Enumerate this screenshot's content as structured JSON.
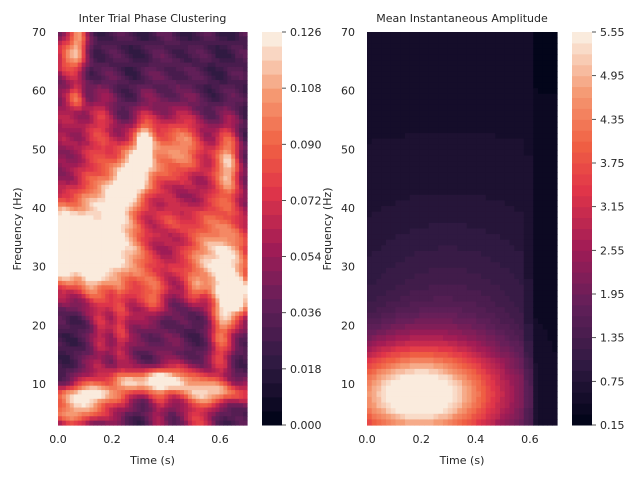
{
  "chart_data": [
    {
      "type": "heatmap",
      "title": "Inter Trial Phase Clustering",
      "xlabel": "Time (s)",
      "ylabel": "Frequency (Hz)",
      "xlim": [
        0.0,
        0.7
      ],
      "ylim": [
        3,
        70
      ],
      "x_ticks": [
        "0.0",
        "0.2",
        "0.4",
        "0.6"
      ],
      "y_ticks": [
        "10",
        "20",
        "30",
        "40",
        "50",
        "60",
        "70"
      ],
      "colorbar": {
        "range": [
          0.0,
          0.126
        ],
        "ticks": [
          "0.000",
          "0.018",
          "0.036",
          "0.054",
          "0.072",
          "0.090",
          "0.108",
          "0.126"
        ]
      },
      "features": [
        {
          "t": 0.35,
          "f": 10.5,
          "value": 0.12
        },
        {
          "t": 0.1,
          "f": 8.0,
          "value": 0.11
        },
        {
          "t": 0.05,
          "f": 5.0,
          "value": 0.09
        },
        {
          "t": 0.6,
          "f": 8.5,
          "value": 0.09
        },
        {
          "t": 0.15,
          "f": 31.0,
          "value": 0.11
        },
        {
          "t": 0.05,
          "f": 35.0,
          "value": 0.09
        },
        {
          "t": 0.58,
          "f": 32.0,
          "value": 0.08
        },
        {
          "t": 0.42,
          "f": 50.0,
          "value": 0.09
        },
        {
          "t": 0.2,
          "f": 45.0,
          "value": 0.07
        }
      ]
    },
    {
      "type": "heatmap",
      "title": "Mean Instantaneous Amplitude",
      "xlabel": "Time (s)",
      "ylabel": "Frequency (Hz)",
      "xlim": [
        0.0,
        0.7
      ],
      "ylim": [
        3,
        70
      ],
      "x_ticks": [
        "0.0",
        "0.2",
        "0.4",
        "0.6"
      ],
      "y_ticks": [
        "10",
        "20",
        "30",
        "40",
        "50",
        "60",
        "70"
      ],
      "colorbar": {
        "range": [
          0.15,
          5.55
        ],
        "ticks": [
          "0.15",
          "0.75",
          "1.35",
          "1.95",
          "2.55",
          "3.15",
          "3.75",
          "4.35",
          "4.95",
          "5.55"
        ]
      },
      "features": [
        {
          "t": 0.18,
          "f": 8.0,
          "value": 5.5
        },
        {
          "t": 0.3,
          "f": 15.0,
          "value": 3.2
        },
        {
          "t": 0.65,
          "f": 5.0,
          "value": 0.2
        }
      ]
    }
  ]
}
